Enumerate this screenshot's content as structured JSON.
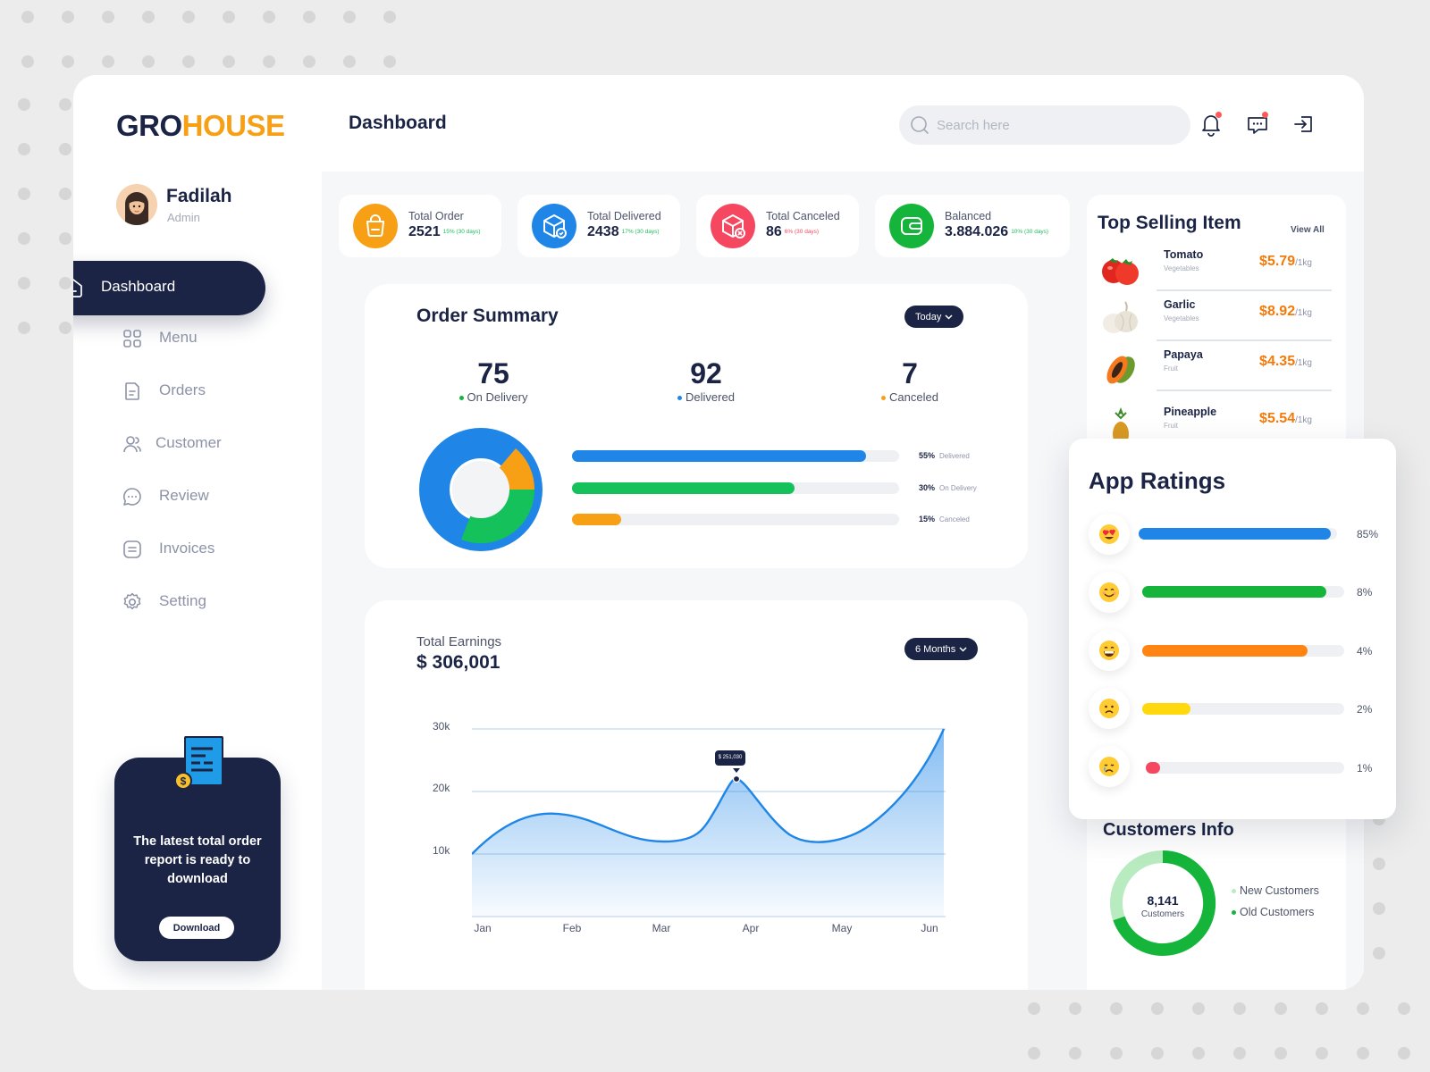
{
  "brand": {
    "part1": "GRO",
    "part2": "HOUSE",
    "primary": "#1b2445",
    "accent": "#f8a015"
  },
  "header": {
    "title": "Dashboard",
    "search_placeholder": "Search here",
    "icons": [
      "bell-icon",
      "chat-icon",
      "logout-icon"
    ]
  },
  "profile": {
    "name": "Fadilah",
    "role": "Admin"
  },
  "sidebar": {
    "active": {
      "label": "Dashboard",
      "icon": "home-icon"
    },
    "items": [
      {
        "label": "Menu",
        "icon": "grid-icon"
      },
      {
        "label": "Orders",
        "icon": "document-icon"
      },
      {
        "label": "Customer",
        "icon": "users-icon"
      },
      {
        "label": "Review",
        "icon": "chat-bubble-icon"
      },
      {
        "label": "Invoices",
        "icon": "invoice-icon"
      },
      {
        "label": "Setting",
        "icon": "gear-icon"
      }
    ]
  },
  "download_card": {
    "text": "The latest total order report is ready to download",
    "button": "Download"
  },
  "stats": [
    {
      "label": "Total Order",
      "value": "2521",
      "change": "15% (30 days)",
      "color": "#f8a015",
      "change_color": "#1fbf5b",
      "icon": "bag-icon"
    },
    {
      "label": "Total Delivered",
      "value": "2438",
      "change": "17% (30 days)",
      "color": "#1f86e8",
      "change_color": "#1fbf5b",
      "icon": "box-check-icon"
    },
    {
      "label": "Total Canceled",
      "value": "86",
      "change": "6% (30 days)",
      "color": "#f5475f",
      "change_color": "#f5475f",
      "icon": "box-cancel-icon"
    },
    {
      "label": "Balanced",
      "value": "3.884.026",
      "change": "10% (30 days)",
      "color": "#14b53a",
      "change_color": "#1fbf5b",
      "icon": "wallet-icon"
    }
  ],
  "order_summary": {
    "title": "Order Summary",
    "filter": "Today",
    "totals": [
      {
        "value": "75",
        "label": "On Delivery",
        "color": "#14b53a"
      },
      {
        "value": "92",
        "label": "Delivered",
        "color": "#1f86e8"
      },
      {
        "value": "7",
        "label": "Canceled",
        "color": "#f8a015"
      }
    ],
    "bars": [
      {
        "pct": "55%",
        "label": "Delivered",
        "fill": 0.9,
        "color": "#1f86e8"
      },
      {
        "pct": "30%",
        "label": "On Delivery",
        "fill": 0.68,
        "color": "#14c15a"
      },
      {
        "pct": "15%",
        "label": "Canceled",
        "fill": 0.15,
        "color": "#f8a015"
      }
    ]
  },
  "earnings": {
    "label": "Total Earnings",
    "value": "$ 306,001",
    "filter": "6 Months",
    "tooltip": "$ 251,030"
  },
  "chart_data": {
    "type": "area",
    "categories": [
      "Jan",
      "Feb",
      "Mar",
      "Apr",
      "May",
      "Jun"
    ],
    "yticks": [
      "30k",
      "20k",
      "10k"
    ],
    "ylim": [
      0,
      30000
    ],
    "color": "#1f86e8"
  },
  "top_selling": {
    "title": "Top Selling Item",
    "view_all": "View All",
    "items": [
      {
        "name": "Tomato",
        "category": "Vegetables",
        "price": "$5.79",
        "unit": "/1kg"
      },
      {
        "name": "Garlic",
        "category": "Vegetables",
        "price": "$8.92",
        "unit": "/1kg"
      },
      {
        "name": "Papaya",
        "category": "Fruit",
        "price": "$4.35",
        "unit": "/1kg"
      },
      {
        "name": "Pineapple",
        "category": "Fruit",
        "price": "$5.54",
        "unit": "/1kg"
      }
    ]
  },
  "app_ratings": {
    "title": "App Ratings",
    "rows": [
      {
        "emoji": "heart-eyes-icon",
        "pct": "85%",
        "fill": 0.97,
        "color": "#1f86e8"
      },
      {
        "emoji": "smile-icon",
        "pct": "8%",
        "fill": 0.91,
        "color": "#14b53a"
      },
      {
        "emoji": "grin-icon",
        "pct": "4%",
        "fill": 0.82,
        "color": "#ff8412"
      },
      {
        "emoji": "frown-icon",
        "pct": "2%",
        "fill": 0.24,
        "color": "#ffd90e"
      },
      {
        "emoji": "cry-icon",
        "pct": "1%",
        "fill": 0.07,
        "color": "#f5475f"
      }
    ]
  },
  "customers": {
    "title": "Customers Info",
    "total": "8,141",
    "total_label": "Customers",
    "legend": [
      {
        "label": "New Customers",
        "color": "#b8ecc0"
      },
      {
        "label": "Old Customers",
        "color": "#14b53a"
      }
    ]
  }
}
